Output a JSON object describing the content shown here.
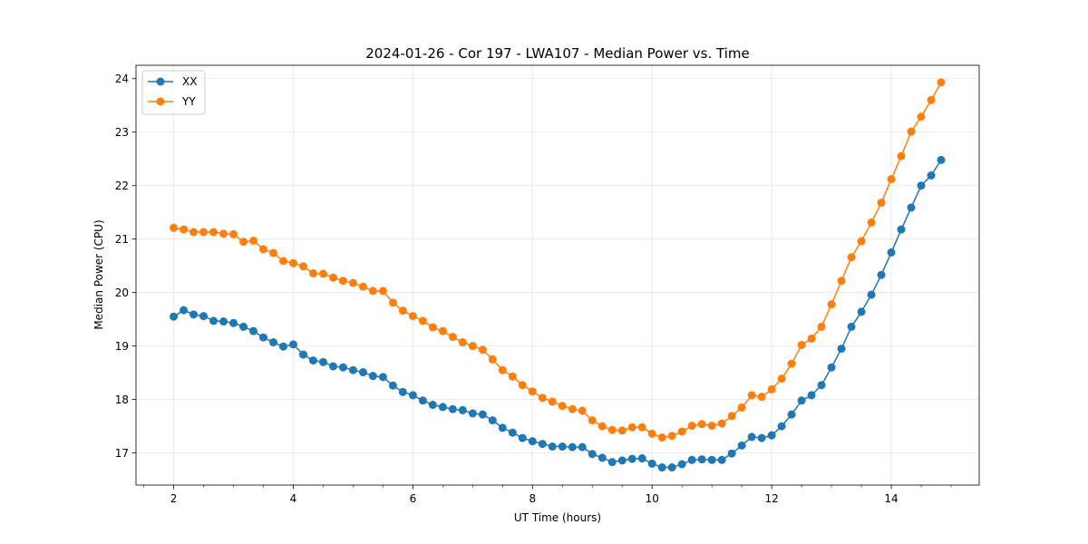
{
  "chart_data": {
    "type": "line",
    "title": "2024-01-26 - Cor 197 - LWA107 - Median Power vs. Time",
    "xlabel": "UT Time (hours)",
    "ylabel": "Median Power (CPU)",
    "xlim": [
      1.37,
      15.47
    ],
    "ylim": [
      16.4,
      24.25
    ],
    "xticks": [
      2,
      4,
      6,
      8,
      10,
      12,
      14
    ],
    "xtick_labels": [
      "2",
      "4",
      "6",
      "8",
      "10",
      "12",
      "14"
    ],
    "xminor": [
      1.5,
      2.5,
      3,
      3.5,
      4.5,
      5,
      5.5,
      6.5,
      7,
      7.5,
      8.5,
      9,
      9.5,
      10.5,
      11,
      11.5,
      12.5,
      13,
      13.5,
      14.5,
      15
    ],
    "yticks": [
      17,
      18,
      19,
      20,
      21,
      22,
      23,
      24
    ],
    "ytick_labels": [
      "17",
      "18",
      "19",
      "20",
      "21",
      "22",
      "23",
      "24"
    ],
    "grid": true,
    "legend": {
      "placement": "top-left"
    },
    "x": [
      2.0,
      2.167,
      2.333,
      2.5,
      2.667,
      2.833,
      3.0,
      3.167,
      3.333,
      3.5,
      3.667,
      3.833,
      4.0,
      4.167,
      4.333,
      4.5,
      4.667,
      4.833,
      5.0,
      5.167,
      5.333,
      5.5,
      5.667,
      5.833,
      6.0,
      6.167,
      6.333,
      6.5,
      6.667,
      6.833,
      7.0,
      7.167,
      7.333,
      7.5,
      7.667,
      7.833,
      8.0,
      8.167,
      8.333,
      8.5,
      8.667,
      8.833,
      9.0,
      9.167,
      9.333,
      9.5,
      9.667,
      9.833,
      10.0,
      10.167,
      10.333,
      10.5,
      10.667,
      10.833,
      11.0,
      11.167,
      11.333,
      11.5,
      11.667,
      11.833,
      12.0,
      12.167,
      12.333,
      12.5,
      12.667,
      12.833,
      13.0,
      13.167,
      13.333,
      13.5,
      13.667,
      13.833,
      14.0,
      14.167,
      14.333,
      14.5,
      14.667,
      14.833
    ],
    "series": [
      {
        "name": "XX",
        "color": "#1f77b4",
        "values": [
          19.55,
          19.67,
          19.59,
          19.56,
          19.47,
          19.46,
          19.43,
          19.36,
          19.28,
          19.16,
          19.07,
          18.99,
          19.03,
          18.84,
          18.73,
          18.7,
          18.62,
          18.6,
          18.55,
          18.51,
          18.44,
          18.42,
          18.26,
          18.14,
          18.08,
          17.98,
          17.9,
          17.86,
          17.82,
          17.8,
          17.74,
          17.72,
          17.61,
          17.47,
          17.38,
          17.28,
          17.22,
          17.17,
          17.12,
          17.12,
          17.11,
          17.11,
          16.98,
          16.91,
          16.83,
          16.86,
          16.89,
          16.9,
          16.8,
          16.73,
          16.73,
          16.79,
          16.87,
          16.88,
          16.87,
          16.87,
          16.99,
          17.14,
          17.3,
          17.28,
          17.33,
          17.5,
          17.72,
          17.98,
          18.08,
          18.27,
          18.6,
          18.95,
          19.36,
          19.64,
          19.96,
          20.33,
          20.75,
          21.18,
          21.59,
          22.0,
          22.19,
          22.48
        ]
      },
      {
        "name": "YY",
        "color": "#ff7f0e",
        "values": [
          21.21,
          21.18,
          21.13,
          21.13,
          21.13,
          21.1,
          21.09,
          20.95,
          20.97,
          20.81,
          20.74,
          20.59,
          20.55,
          20.49,
          20.36,
          20.35,
          20.28,
          20.22,
          20.18,
          20.11,
          20.03,
          20.03,
          19.81,
          19.66,
          19.56,
          19.47,
          19.35,
          19.28,
          19.17,
          19.07,
          19.0,
          18.93,
          18.75,
          18.55,
          18.43,
          18.27,
          18.15,
          18.03,
          17.96,
          17.88,
          17.82,
          17.79,
          17.61,
          17.5,
          17.43,
          17.42,
          17.48,
          17.48,
          17.36,
          17.29,
          17.32,
          17.4,
          17.51,
          17.54,
          17.51,
          17.55,
          17.69,
          17.85,
          18.08,
          18.05,
          18.19,
          18.39,
          18.67,
          19.02,
          19.14,
          19.36,
          19.78,
          20.22,
          20.66,
          20.96,
          21.31,
          21.68,
          22.12,
          22.55,
          23.01,
          23.29,
          23.6,
          23.93
        ]
      }
    ]
  }
}
